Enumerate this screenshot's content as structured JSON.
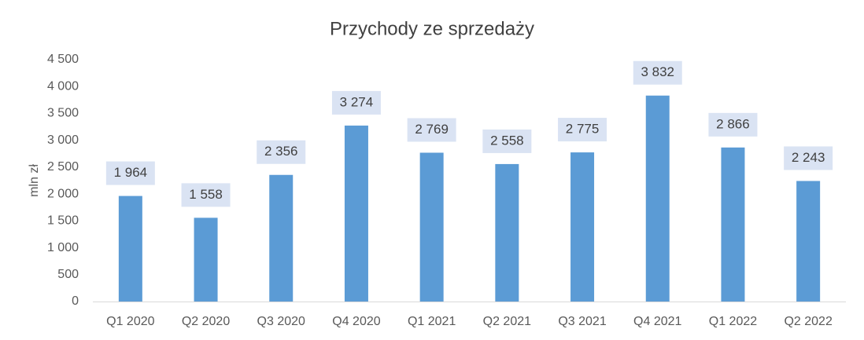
{
  "chart_data": {
    "type": "bar",
    "title": "Przychody ze sprzedaży",
    "y_label": "mln zł",
    "categories": [
      "Q1 2020",
      "Q2 2020",
      "Q3 2020",
      "Q4 2020",
      "Q1 2021",
      "Q2 2021",
      "Q3 2021",
      "Q4 2021",
      "Q1 2022",
      "Q2 2022"
    ],
    "values": [
      1964,
      1558,
      2356,
      3274,
      2769,
      2558,
      2775,
      3832,
      2866,
      2243
    ],
    "value_labels": [
      "1 964",
      "1 558",
      "2 356",
      "3 274",
      "2 769",
      "2 558",
      "2 775",
      "3 832",
      "2 866",
      "2 243"
    ],
    "color": "#5b9bd5",
    "ylim": [
      0,
      4500
    ],
    "yticks": [
      0,
      500,
      {
        "value": 1000,
        "label": "1 000"
      },
      {
        "value": 1500,
        "label": "1 500"
      },
      {
        "value": 2000,
        "label": "2 000"
      },
      {
        "value": 2500,
        "label": "2 500"
      },
      {
        "value": 3000,
        "label": "3 000"
      },
      {
        "value": 3500,
        "label": "3 500"
      },
      {
        "value": 4000,
        "label": "4 000"
      },
      {
        "value": 4500,
        "label": "4 500"
      }
    ],
    "grid": false
  }
}
